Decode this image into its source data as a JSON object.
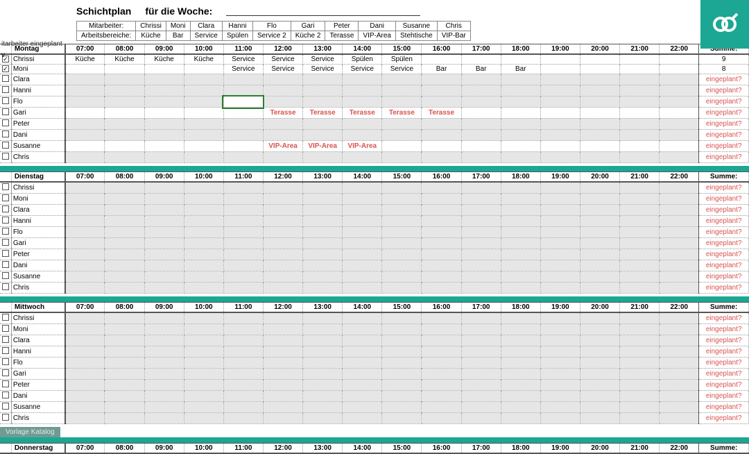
{
  "title": {
    "t1": "Schichtplan",
    "t2": "für die Woche:"
  },
  "sideLabel": "itarbeiter eingeplant",
  "sideV": "v",
  "assignHeader": {
    "row1label": "Mitarbeiter:",
    "row2label": "Arbeitsbereiche:"
  },
  "employees": [
    "Chrissi",
    "Moni",
    "Clara",
    "Hanni",
    "Flo",
    "Gari",
    "Peter",
    "Dani",
    "Susanne",
    "Chris"
  ],
  "areas": [
    "Küche",
    "Bar",
    "Service",
    "Spülen",
    "Service 2",
    "Küche 2",
    "Terasse",
    "VIP-Area",
    "Stehtische",
    "VIP-Bar"
  ],
  "hours": [
    "07:00",
    "08:00",
    "09:00",
    "10:00",
    "11:00",
    "12:00",
    "13:00",
    "14:00",
    "15:00",
    "16:00",
    "17:00",
    "18:00",
    "19:00",
    "20:00",
    "21:00",
    "22:00"
  ],
  "summeLabel": "Summe:",
  "eingeplant": "eingeplant?",
  "footerTab": "Vorlage Katalog",
  "days": [
    {
      "name": "Montag",
      "rows": [
        {
          "name": "Chrissi",
          "checked": true,
          "summe": "9",
          "cells": [
            "Küche",
            "Küche",
            "Küche",
            "Küche",
            "Service",
            "Service",
            "Service",
            "Spülen",
            "Spülen",
            "",
            "",
            "",
            "",
            "",
            "",
            ""
          ],
          "colors": [
            "",
            "",
            "",
            "",
            "",
            "",
            "",
            "",
            "",
            "",
            "",
            "",
            "",
            "",
            "",
            ""
          ]
        },
        {
          "name": "Moni",
          "checked": true,
          "summe": "8",
          "cells": [
            "",
            "",
            "",
            "",
            "Service",
            "Service",
            "Service",
            "Service",
            "Service",
            "Bar",
            "Bar",
            "Bar",
            "",
            "",
            "",
            ""
          ],
          "colors": [
            "",
            "",
            "",
            "",
            "",
            "",
            "",
            "",
            "",
            "",
            "",
            "",
            "",
            "",
            "",
            ""
          ]
        },
        {
          "name": "Clara",
          "checked": false,
          "summe": "eingeplant?",
          "cells": [
            "",
            "",
            "",
            "",
            "",
            "",
            "",
            "",
            "",
            "",
            "",
            "",
            "",
            "",
            "",
            ""
          ],
          "colors": [
            "",
            "",
            "",
            "",
            "",
            "",
            "",
            "",
            "",
            "",
            "",
            "",
            "",
            "",
            "",
            ""
          ]
        },
        {
          "name": "Hanni",
          "checked": false,
          "summe": "eingeplant?",
          "cells": [
            "",
            "",
            "",
            "",
            "",
            "",
            "",
            "",
            "",
            "",
            "",
            "",
            "",
            "",
            "",
            ""
          ],
          "colors": [
            "",
            "",
            "",
            "",
            "",
            "",
            "",
            "",
            "",
            "",
            "",
            "",
            "",
            "",
            "",
            ""
          ]
        },
        {
          "name": "Flo",
          "checked": false,
          "summe": "eingeplant?",
          "selectedCol": 4,
          "cells": [
            "",
            "",
            "",
            "",
            "",
            "",
            "",
            "",
            "",
            "",
            "",
            "",
            "",
            "",
            "",
            ""
          ],
          "colors": [
            "",
            "",
            "",
            "",
            "",
            "",
            "",
            "",
            "",
            "",
            "",
            "",
            "",
            "",
            "",
            ""
          ]
        },
        {
          "name": "Gari",
          "checked": false,
          "summe": "eingeplant?",
          "cells": [
            "",
            "",
            "",
            "",
            "",
            "Terasse",
            "Terasse",
            "Terasse",
            "Terasse",
            "Terasse",
            "",
            "",
            "",
            "",
            "",
            ""
          ],
          "colors": [
            "",
            "",
            "",
            "",
            "",
            "red",
            "red",
            "red",
            "red",
            "red",
            "",
            "",
            "",
            "",
            "",
            ""
          ]
        },
        {
          "name": "Peter",
          "checked": false,
          "summe": "eingeplant?",
          "cells": [
            "",
            "",
            "",
            "",
            "",
            "",
            "",
            "",
            "",
            "",
            "",
            "",
            "",
            "",
            "",
            ""
          ],
          "colors": [
            "",
            "",
            "",
            "",
            "",
            "",
            "",
            "",
            "",
            "",
            "",
            "",
            "",
            "",
            "",
            ""
          ]
        },
        {
          "name": "Dani",
          "checked": false,
          "summe": "eingeplant?",
          "cells": [
            "",
            "",
            "",
            "",
            "",
            "",
            "",
            "",
            "",
            "",
            "",
            "",
            "",
            "",
            "",
            ""
          ],
          "colors": [
            "",
            "",
            "",
            "",
            "",
            "",
            "",
            "",
            "",
            "",
            "",
            "",
            "",
            "",
            "",
            ""
          ]
        },
        {
          "name": "Susanne",
          "checked": false,
          "summe": "eingeplant?",
          "cells": [
            "",
            "",
            "",
            "",
            "",
            "VIP-Area",
            "VIP-Area",
            "VIP-Area",
            "",
            "",
            "",
            "",
            "",
            "",
            "",
            ""
          ],
          "colors": [
            "",
            "",
            "",
            "",
            "",
            "red",
            "red",
            "red",
            "",
            "",
            "",
            "",
            "",
            "",
            "",
            ""
          ]
        },
        {
          "name": "Chris",
          "checked": false,
          "summe": "eingeplant?",
          "cells": [
            "",
            "",
            "",
            "",
            "",
            "",
            "",
            "",
            "",
            "",
            "",
            "",
            "",
            "",
            "",
            ""
          ],
          "colors": [
            "",
            "",
            "",
            "",
            "",
            "",
            "",
            "",
            "",
            "",
            "",
            "",
            "",
            "",
            "",
            ""
          ]
        }
      ]
    },
    {
      "name": "Dienstag",
      "rows": [
        {
          "name": "Chrissi",
          "checked": false,
          "summe": "eingeplant?",
          "cells": [
            "",
            "",
            "",
            "",
            "",
            "",
            "",
            "",
            "",
            "",
            "",
            "",
            "",
            "",
            "",
            ""
          ],
          "colors": []
        },
        {
          "name": "Moni",
          "checked": false,
          "summe": "eingeplant?",
          "cells": [
            "",
            "",
            "",
            "",
            "",
            "",
            "",
            "",
            "",
            "",
            "",
            "",
            "",
            "",
            "",
            ""
          ],
          "colors": []
        },
        {
          "name": "Clara",
          "checked": false,
          "summe": "eingeplant?",
          "cells": [
            "",
            "",
            "",
            "",
            "",
            "",
            "",
            "",
            "",
            "",
            "",
            "",
            "",
            "",
            "",
            ""
          ],
          "colors": []
        },
        {
          "name": "Hanni",
          "checked": false,
          "summe": "eingeplant?",
          "cells": [
            "",
            "",
            "",
            "",
            "",
            "",
            "",
            "",
            "",
            "",
            "",
            "",
            "",
            "",
            "",
            ""
          ],
          "colors": []
        },
        {
          "name": "Flo",
          "checked": false,
          "summe": "eingeplant?",
          "cells": [
            "",
            "",
            "",
            "",
            "",
            "",
            "",
            "",
            "",
            "",
            "",
            "",
            "",
            "",
            "",
            ""
          ],
          "colors": []
        },
        {
          "name": "Gari",
          "checked": false,
          "summe": "eingeplant?",
          "cells": [
            "",
            "",
            "",
            "",
            "",
            "",
            "",
            "",
            "",
            "",
            "",
            "",
            "",
            "",
            "",
            ""
          ],
          "colors": []
        },
        {
          "name": "Peter",
          "checked": false,
          "summe": "eingeplant?",
          "cells": [
            "",
            "",
            "",
            "",
            "",
            "",
            "",
            "",
            "",
            "",
            "",
            "",
            "",
            "",
            "",
            ""
          ],
          "colors": []
        },
        {
          "name": "Dani",
          "checked": false,
          "summe": "eingeplant?",
          "cells": [
            "",
            "",
            "",
            "",
            "",
            "",
            "",
            "",
            "",
            "",
            "",
            "",
            "",
            "",
            "",
            ""
          ],
          "colors": []
        },
        {
          "name": "Susanne",
          "checked": false,
          "summe": "eingeplant?",
          "cells": [
            "",
            "",
            "",
            "",
            "",
            "",
            "",
            "",
            "",
            "",
            "",
            "",
            "",
            "",
            "",
            ""
          ],
          "colors": []
        },
        {
          "name": "Chris",
          "checked": false,
          "summe": "eingeplant?",
          "cells": [
            "",
            "",
            "",
            "",
            "",
            "",
            "",
            "",
            "",
            "",
            "",
            "",
            "",
            "",
            "",
            ""
          ],
          "colors": []
        }
      ]
    },
    {
      "name": "Mittwoch",
      "rows": [
        {
          "name": "Chrissi",
          "checked": false,
          "summe": "eingeplant?",
          "cells": [
            "",
            "",
            "",
            "",
            "",
            "",
            "",
            "",
            "",
            "",
            "",
            "",
            "",
            "",
            "",
            ""
          ],
          "colors": []
        },
        {
          "name": "Moni",
          "checked": false,
          "summe": "eingeplant?",
          "cells": [
            "",
            "",
            "",
            "",
            "",
            "",
            "",
            "",
            "",
            "",
            "",
            "",
            "",
            "",
            "",
            ""
          ],
          "colors": []
        },
        {
          "name": "Clara",
          "checked": false,
          "summe": "eingeplant?",
          "cells": [
            "",
            "",
            "",
            "",
            "",
            "",
            "",
            "",
            "",
            "",
            "",
            "",
            "",
            "",
            "",
            ""
          ],
          "colors": []
        },
        {
          "name": "Hanni",
          "checked": false,
          "summe": "eingeplant?",
          "cells": [
            "",
            "",
            "",
            "",
            "",
            "",
            "",
            "",
            "",
            "",
            "",
            "",
            "",
            "",
            "",
            ""
          ],
          "colors": []
        },
        {
          "name": "Flo",
          "checked": false,
          "summe": "eingeplant?",
          "cells": [
            "",
            "",
            "",
            "",
            "",
            "",
            "",
            "",
            "",
            "",
            "",
            "",
            "",
            "",
            "",
            ""
          ],
          "colors": []
        },
        {
          "name": "Gari",
          "checked": false,
          "summe": "eingeplant?",
          "cells": [
            "",
            "",
            "",
            "",
            "",
            "",
            "",
            "",
            "",
            "",
            "",
            "",
            "",
            "",
            "",
            ""
          ],
          "colors": []
        },
        {
          "name": "Peter",
          "checked": false,
          "summe": "eingeplant?",
          "cells": [
            "",
            "",
            "",
            "",
            "",
            "",
            "",
            "",
            "",
            "",
            "",
            "",
            "",
            "",
            "",
            ""
          ],
          "colors": []
        },
        {
          "name": "Dani",
          "checked": false,
          "summe": "eingeplant?",
          "cells": [
            "",
            "",
            "",
            "",
            "",
            "",
            "",
            "",
            "",
            "",
            "",
            "",
            "",
            "",
            "",
            ""
          ],
          "colors": []
        },
        {
          "name": "Susanne",
          "checked": false,
          "summe": "eingeplant?",
          "cells": [
            "",
            "",
            "",
            "",
            "",
            "",
            "",
            "",
            "",
            "",
            "",
            "",
            "",
            "",
            "",
            ""
          ],
          "colors": []
        },
        {
          "name": "Chris",
          "checked": false,
          "summe": "eingeplant?",
          "cells": [
            "",
            "",
            "",
            "",
            "",
            "",
            "",
            "",
            "",
            "",
            "",
            "",
            "",
            "",
            "",
            ""
          ],
          "colors": []
        }
      ]
    },
    {
      "name": "Donnerstag",
      "rows": []
    }
  ]
}
